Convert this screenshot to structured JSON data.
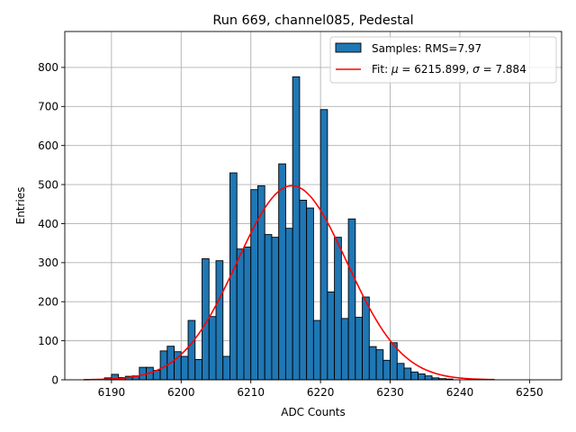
{
  "chart_data": {
    "type": "bar",
    "title": "Run 669, channel085, Pedestal",
    "xlabel": "ADC Counts",
    "ylabel": "Entries",
    "xlim": [
      6183.3,
      6254.6
    ],
    "ylim": [
      0,
      892
    ],
    "xticks": [
      6190,
      6200,
      6210,
      6220,
      6230,
      6240,
      6250
    ],
    "yticks": [
      0,
      100,
      200,
      300,
      400,
      500,
      600,
      700,
      800
    ],
    "grid": true,
    "legend_position": "top-right",
    "bar_color": "#1f77b4",
    "fit_color": "#ff0000",
    "histogram": {
      "name": "Samples: RMS=7.97",
      "bin_start": 6189,
      "bin_width": 1,
      "counts": [
        5,
        14,
        6,
        9,
        10,
        32,
        32,
        24,
        74,
        86,
        72,
        60,
        152,
        52,
        310,
        162,
        305,
        60,
        530,
        335,
        340,
        487,
        497,
        372,
        365,
        553,
        388,
        776,
        460,
        440,
        152,
        692,
        225,
        365,
        157,
        412,
        160,
        212,
        85,
        77,
        50,
        95,
        42,
        30,
        20,
        15,
        10,
        5,
        3,
        2
      ]
    },
    "fit": {
      "label_prefix": "Fit: ",
      "mu_symbol": "μ",
      "sigma_symbol": "σ",
      "mu": 6215.899,
      "sigma": 7.884,
      "amplitude": 497,
      "x_range": [
        6186,
        6245
      ]
    }
  }
}
